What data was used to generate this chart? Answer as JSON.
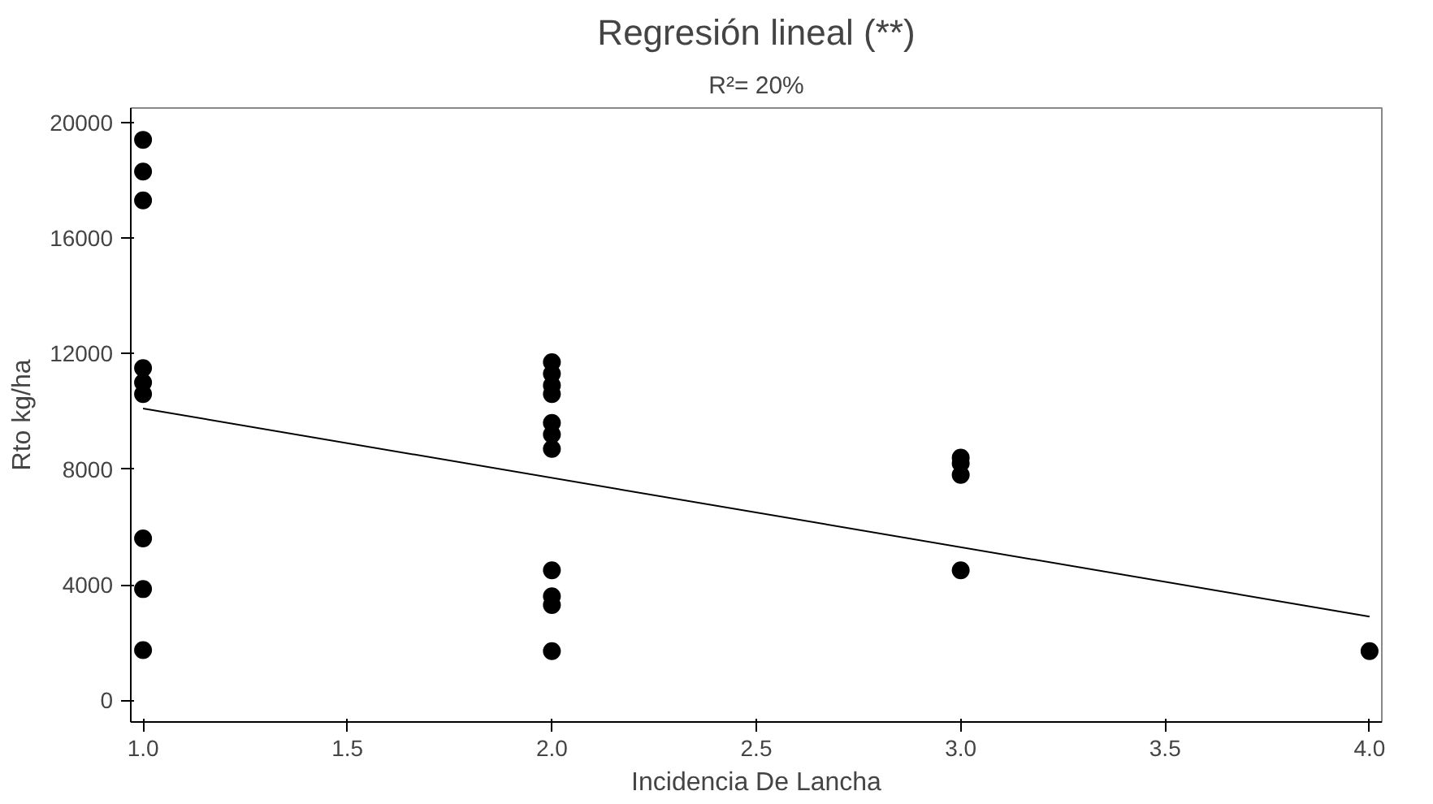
{
  "chart_data": {
    "type": "scatter",
    "title": "Regresión lineal (**)",
    "subtitle": "R²= 20%",
    "xlabel": "Incidencia De Lancha",
    "ylabel": "Rto kg/ha",
    "xlim": [
      0.97,
      4.03
    ],
    "xticks": [
      {
        "value": 1,
        "label": "1.0"
      },
      {
        "value": 1.5,
        "label": "1.5"
      },
      {
        "value": 2,
        "label": "2.0"
      },
      {
        "value": 2.5,
        "label": "2.5"
      },
      {
        "value": 3,
        "label": "3.0"
      },
      {
        "value": 3.5,
        "label": "3.5"
      },
      {
        "value": 4,
        "label": "4.0"
      }
    ],
    "ylim": [
      -750,
      20500
    ],
    "yticks": [
      0,
      4000,
      8000,
      12000,
      16000,
      20000
    ],
    "grid": false,
    "marker": "circle",
    "series": [
      {
        "color": "#000000",
        "x": [
          1,
          1,
          1,
          1,
          1,
          1,
          1,
          1,
          1,
          2,
          2,
          2,
          2,
          2,
          2,
          2,
          2,
          2,
          2,
          2,
          3,
          3,
          3,
          3,
          4
        ],
        "values": [
          19400,
          18300,
          17300,
          11500,
          11000,
          10600,
          5600,
          3850,
          1740,
          11700,
          11300,
          10900,
          10600,
          9600,
          9200,
          8700,
          4500,
          3600,
          3300,
          1700,
          8400,
          8200,
          7800,
          4500,
          1700
        ]
      },
      {
        "type": "line",
        "color": "#000000",
        "x": [
          1,
          4
        ],
        "values": [
          10100,
          2900
        ],
        "marker": "none",
        "line_style": "solid"
      }
    ]
  }
}
